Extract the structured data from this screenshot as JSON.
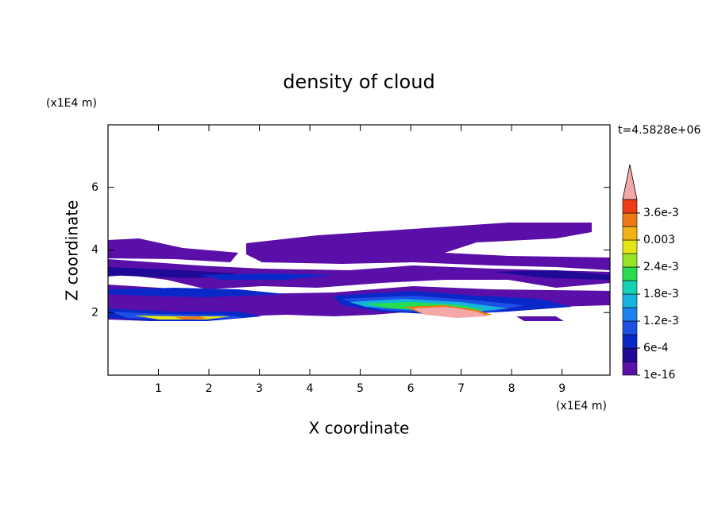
{
  "chart_data": {
    "type": "contour",
    "title": "density of cloud",
    "x_label": "X coordinate",
    "y_label": "Z coordinate",
    "x_unit": "(x1E4 m)",
    "y_unit": "(x1E4 m)",
    "time_label": "t=4.5828e+06",
    "xlim": [
      0,
      9.95
    ],
    "ylim": [
      0,
      8
    ],
    "xticks": [
      1,
      2,
      3,
      4,
      5,
      6,
      7,
      8,
      9
    ],
    "yticks": [
      2,
      4,
      6
    ],
    "clim": [
      0,
      0.0039
    ],
    "colorbar_ticks": [
      1e-16,
      {
        "value": 0.0006,
        "label": "6e-4"
      },
      {
        "value": 0.0012,
        "label": "1.2e-3"
      },
      {
        "value": 0.0018,
        "label": "1.8e-3"
      },
      {
        "value": 0.0024,
        "label": "2.4e-3"
      },
      0.003,
      {
        "value": 0.0036,
        "label": "3.6e-3"
      }
    ],
    "colors": [
      "#5a0fa8",
      "#1e0a96",
      "#0a28c8",
      "#1e50e6",
      "#1e82f0",
      "#14b4dc",
      "#14d2b4",
      "#28dc50",
      "#96e628",
      "#e6e614",
      "#f0b414",
      "#f07814",
      "#f03c14",
      "#f4a8a8"
    ]
  }
}
